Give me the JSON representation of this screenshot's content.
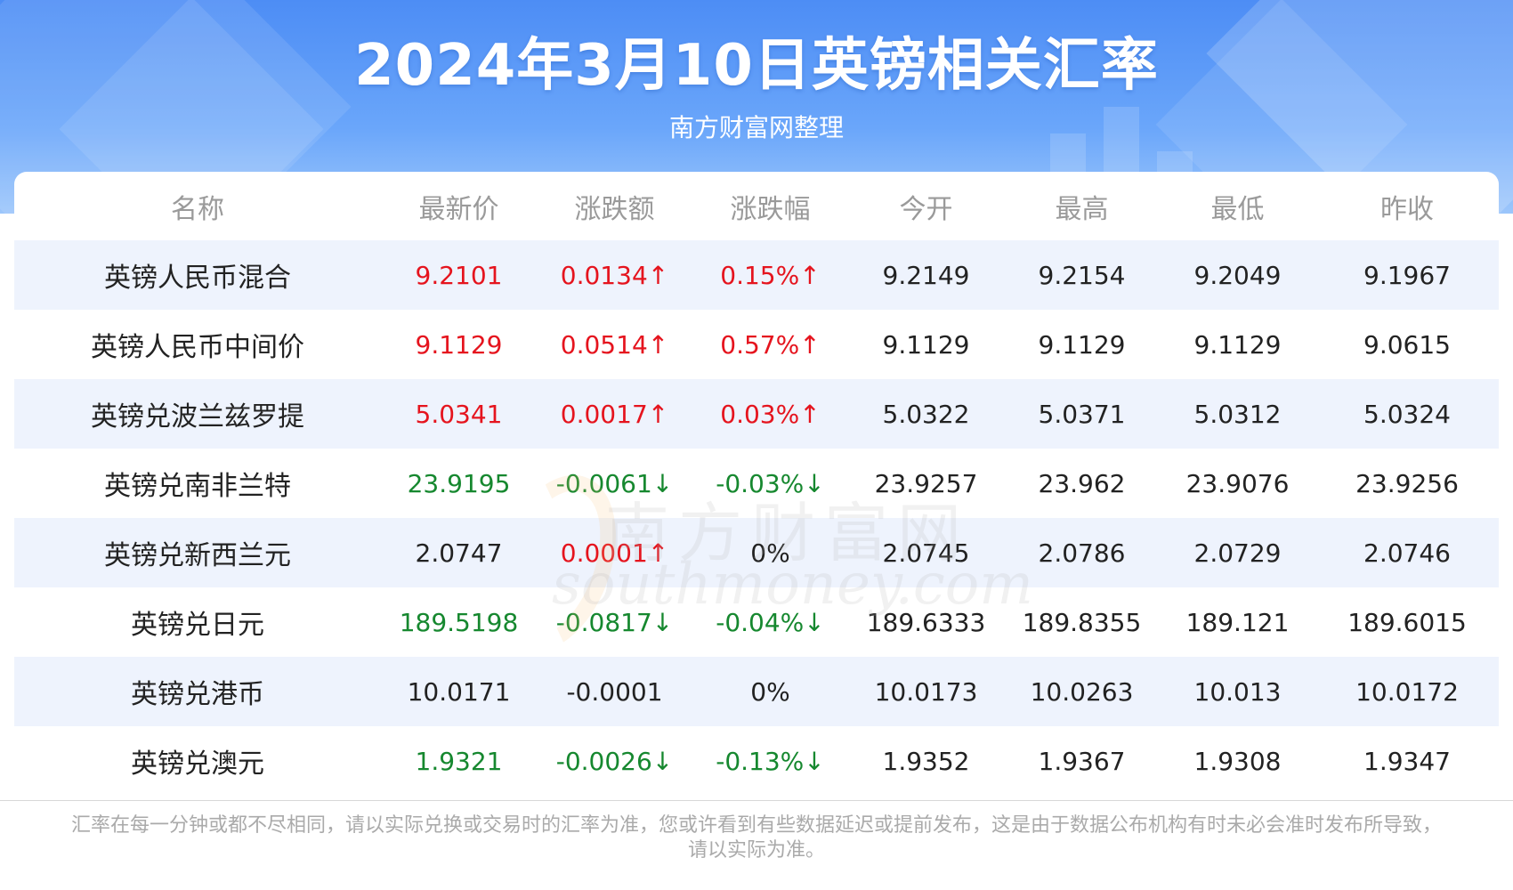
{
  "header": {
    "title": "2024年3月10日英镑相关汇率",
    "subtitle": "南方财富网整理"
  },
  "table": {
    "columns": [
      "名称",
      "最新价",
      "涨跌额",
      "涨跌幅",
      "今开",
      "最高",
      "最低",
      "昨收"
    ],
    "rows": [
      {
        "name": "英镑人民币混合",
        "latest": "9.2101",
        "change": "0.0134↑",
        "pct": "0.15%↑",
        "open": "9.2149",
        "high": "9.2154",
        "low": "9.2049",
        "prev": "9.1967",
        "latest_dir": "up",
        "change_dir": "up",
        "pct_dir": "up"
      },
      {
        "name": "英镑人民币中间价",
        "latest": "9.1129",
        "change": "0.0514↑",
        "pct": "0.57%↑",
        "open": "9.1129",
        "high": "9.1129",
        "low": "9.1129",
        "prev": "9.0615",
        "latest_dir": "up",
        "change_dir": "up",
        "pct_dir": "up"
      },
      {
        "name": "英镑兑波兰兹罗提",
        "latest": "5.0341",
        "change": "0.0017↑",
        "pct": "0.03%↑",
        "open": "5.0322",
        "high": "5.0371",
        "low": "5.0312",
        "prev": "5.0324",
        "latest_dir": "up",
        "change_dir": "up",
        "pct_dir": "up"
      },
      {
        "name": "英镑兑南非兰特",
        "latest": "23.9195",
        "change": "-0.0061↓",
        "pct": "-0.03%↓",
        "open": "23.9257",
        "high": "23.962",
        "low": "23.9076",
        "prev": "23.9256",
        "latest_dir": "down",
        "change_dir": "down",
        "pct_dir": "down"
      },
      {
        "name": "英镑兑新西兰元",
        "latest": "2.0747",
        "change": "0.0001↑",
        "pct": "0%",
        "open": "2.0745",
        "high": "2.0786",
        "low": "2.0729",
        "prev": "2.0746",
        "latest_dir": "flat",
        "change_dir": "up",
        "pct_dir": "flat"
      },
      {
        "name": "英镑兑日元",
        "latest": "189.5198",
        "change": "-0.0817↓",
        "pct": "-0.04%↓",
        "open": "189.6333",
        "high": "189.8355",
        "low": "189.121",
        "prev": "189.6015",
        "latest_dir": "down",
        "change_dir": "down",
        "pct_dir": "down"
      },
      {
        "name": "英镑兑港币",
        "latest": "10.0171",
        "change": "-0.0001",
        "pct": "0%",
        "open": "10.0173",
        "high": "10.0263",
        "low": "10.013",
        "prev": "10.0172",
        "latest_dir": "flat",
        "change_dir": "flat",
        "pct_dir": "flat"
      },
      {
        "name": "英镑兑澳元",
        "latest": "1.9321",
        "change": "-0.0026↓",
        "pct": "-0.13%↓",
        "open": "1.9352",
        "high": "1.9367",
        "low": "1.9308",
        "prev": "1.9347",
        "latest_dir": "down",
        "change_dir": "down",
        "pct_dir": "down"
      }
    ]
  },
  "watermark": {
    "cn": "南方财富网",
    "en": "southmoney.com"
  },
  "footnote": "汇率在每一分钟或都不尽相同，请以实际兑换或交易时的汇率为准，您或许看到有些数据延迟或提前发布，这是由于数据公布机构有时未必会准时发布所导致，请以实际为准。",
  "colors": {
    "up": "#e5141e",
    "down": "#16882f",
    "header_blue": "#4d8df5",
    "row_stripe": "#eef3fd"
  }
}
